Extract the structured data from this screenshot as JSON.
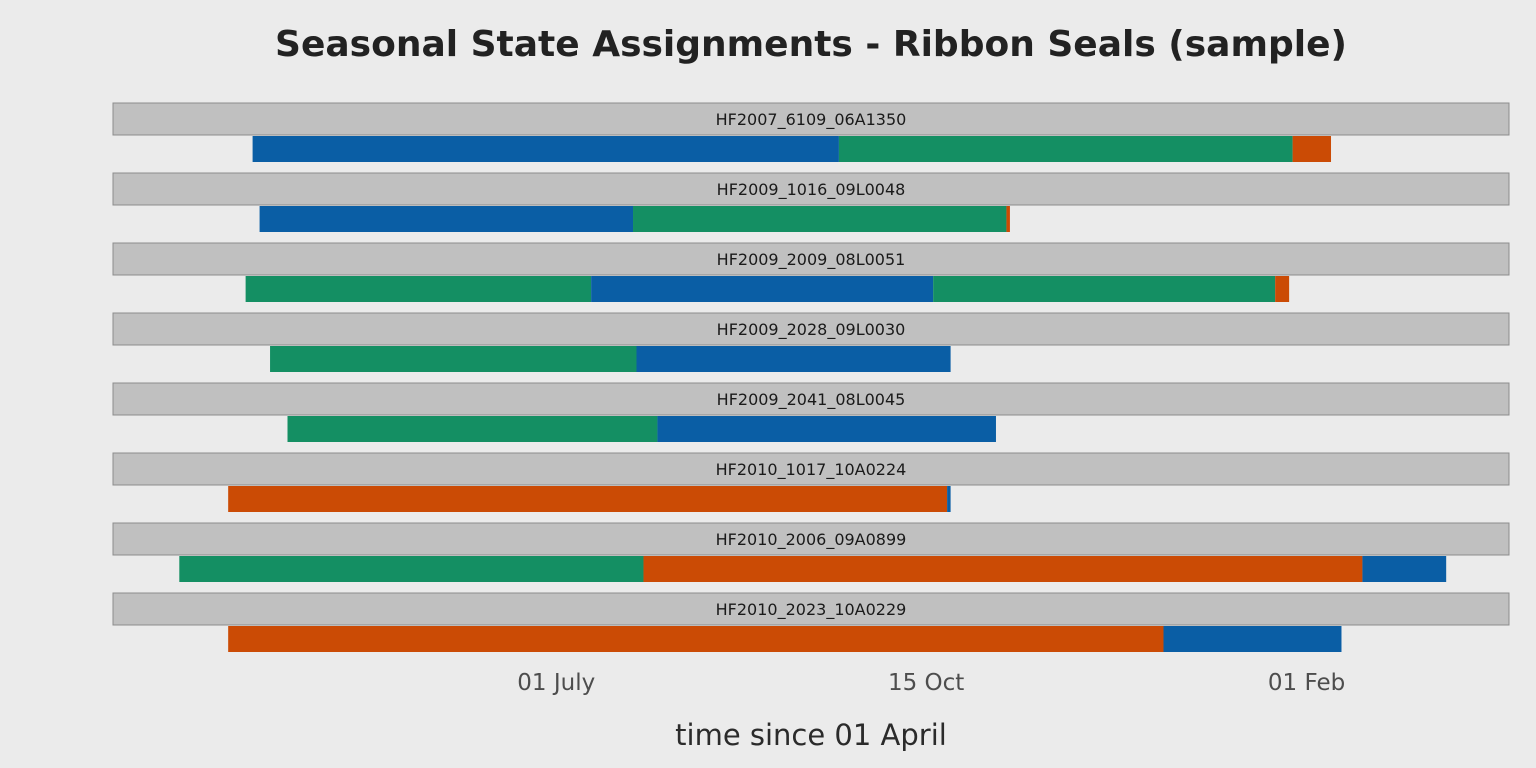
{
  "chart_data": {
    "type": "gantt",
    "title": "Seasonal State Assignments - Ribbon Seals (sample)",
    "xlabel": "time since 01 April",
    "ylabel": "",
    "x_ticks": [
      {
        "label": "01 July",
        "day": 91
      },
      {
        "label": "15 Oct",
        "day": 197
      },
      {
        "label": "01 Feb",
        "day": 306
      }
    ],
    "xlim": [
      -36,
      364
    ],
    "state_colors": {
      "A": "#0a5ea5",
      "B": "#148f63",
      "C": "#cb4b05"
    },
    "panels": [
      {
        "id": "HF2007_6109_06A1350",
        "segments": [
          {
            "start": 4,
            "end": 172,
            "state": "A"
          },
          {
            "start": 172,
            "end": 302,
            "state": "B"
          },
          {
            "start": 302,
            "end": 313,
            "state": "C"
          }
        ]
      },
      {
        "id": "HF2009_1016_09L0048",
        "segments": [
          {
            "start": 6,
            "end": 113,
            "state": "A"
          },
          {
            "start": 113,
            "end": 220,
            "state": "B"
          },
          {
            "start": 220,
            "end": 221,
            "state": "C"
          }
        ]
      },
      {
        "id": "HF2009_2009_08L0051",
        "segments": [
          {
            "start": 2,
            "end": 101,
            "state": "B"
          },
          {
            "start": 101,
            "end": 199,
            "state": "A"
          },
          {
            "start": 199,
            "end": 297,
            "state": "B"
          },
          {
            "start": 297,
            "end": 301,
            "state": "C"
          }
        ]
      },
      {
        "id": "HF2009_2028_09L0030",
        "segments": [
          {
            "start": 9,
            "end": 114,
            "state": "B"
          },
          {
            "start": 114,
            "end": 204,
            "state": "A"
          }
        ]
      },
      {
        "id": "HF2009_2041_08L0045",
        "segments": [
          {
            "start": 14,
            "end": 120,
            "state": "B"
          },
          {
            "start": 120,
            "end": 217,
            "state": "A"
          }
        ]
      },
      {
        "id": "HF2010_1017_10A0224",
        "segments": [
          {
            "start": -3,
            "end": 203,
            "state": "C"
          },
          {
            "start": 203,
            "end": 204,
            "state": "A"
          }
        ]
      },
      {
        "id": "HF2010_2006_09A0899",
        "segments": [
          {
            "start": -17,
            "end": 116,
            "state": "B"
          },
          {
            "start": 116,
            "end": 322,
            "state": "C"
          },
          {
            "start": 322,
            "end": 346,
            "state": "A"
          }
        ]
      },
      {
        "id": "HF2010_2023_10A0229",
        "segments": [
          {
            "start": -3,
            "end": 265,
            "state": "C"
          },
          {
            "start": 265,
            "end": 316,
            "state": "A"
          }
        ]
      }
    ]
  }
}
